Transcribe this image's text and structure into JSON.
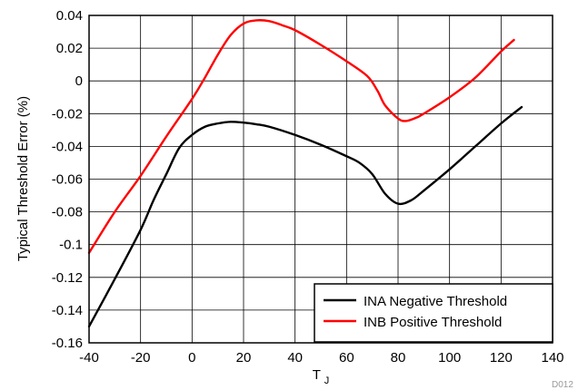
{
  "chart_data": {
    "type": "line",
    "title": "",
    "xlabel": "T",
    "xlabel_subscript": "J",
    "ylabel": "Typical Threshold Error (%)",
    "xlim": [
      -40,
      140
    ],
    "ylim": [
      -0.16,
      0.04
    ],
    "x_ticks": [
      -40,
      -20,
      0,
      20,
      40,
      60,
      80,
      100,
      120,
      140
    ],
    "x_tick_labels": [
      "-40",
      "-20",
      "0",
      "20",
      "40",
      "60",
      "80",
      "100",
      "120",
      "140"
    ],
    "y_ticks": [
      0.04,
      0.02,
      0,
      -0.02,
      -0.04,
      -0.06,
      -0.08,
      -0.1,
      -0.12,
      -0.14,
      -0.16
    ],
    "y_tick_labels": [
      "0.04",
      "0.02",
      "0",
      "-0.02",
      "-0.04",
      "-0.06",
      "-0.08",
      "-0.1",
      "-0.12",
      "-0.14",
      "-0.16"
    ],
    "grid": true,
    "legend_position": "bottom-right",
    "series": [
      {
        "name": "INA Negative Threshold",
        "color": "#000000",
        "x": [
          -40,
          -30,
          -20,
          -15,
          -10,
          -5,
          0,
          5,
          10,
          15,
          20,
          25,
          30,
          40,
          50,
          60,
          65,
          70,
          75,
          80,
          85,
          90,
          100,
          110,
          120,
          128
        ],
        "y": [
          -0.15,
          -0.121,
          -0.091,
          -0.073,
          -0.057,
          -0.041,
          -0.033,
          -0.028,
          -0.026,
          -0.025,
          -0.0255,
          -0.0265,
          -0.028,
          -0.033,
          -0.039,
          -0.046,
          -0.05,
          -0.057,
          -0.069,
          -0.075,
          -0.073,
          -0.067,
          -0.054,
          -0.04,
          -0.026,
          -0.016
        ]
      },
      {
        "name": "INB Positive Threshold",
        "color": "#ff0000",
        "x": [
          -40,
          -30,
          -20,
          -10,
          0,
          5,
          10,
          15,
          20,
          25,
          30,
          35,
          40,
          50,
          60,
          68,
          72,
          75,
          80,
          83,
          87,
          90,
          100,
          110,
          120,
          125
        ],
        "y": [
          -0.105,
          -0.08,
          -0.058,
          -0.034,
          -0.011,
          0.002,
          0.016,
          0.028,
          0.035,
          0.037,
          0.0365,
          0.034,
          0.031,
          0.022,
          0.012,
          0.003,
          -0.006,
          -0.015,
          -0.023,
          -0.0245,
          -0.0225,
          -0.02,
          -0.01,
          0.002,
          0.018,
          0.025
        ]
      }
    ]
  },
  "footnote": "D012"
}
